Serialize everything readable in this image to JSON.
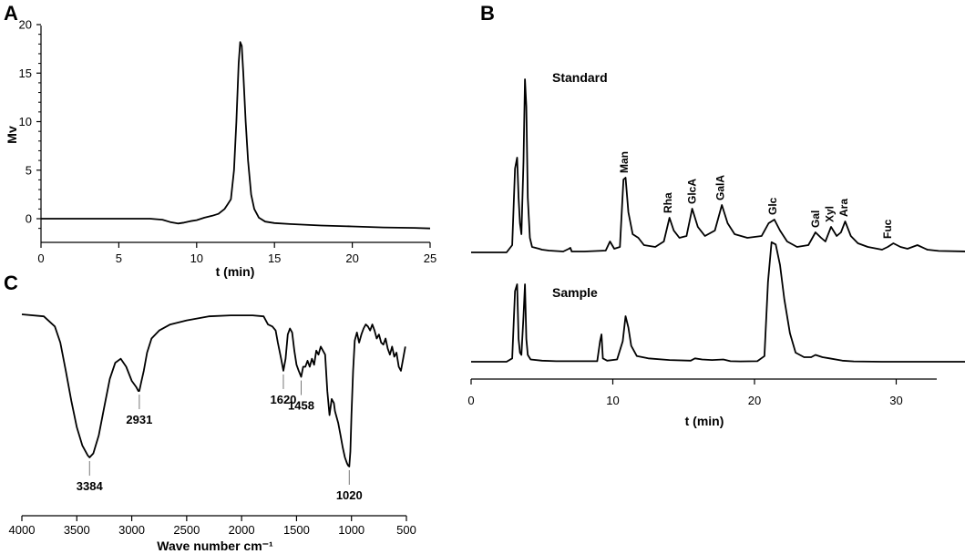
{
  "chart_data": [
    {
      "panel": "A",
      "type": "line",
      "xlabel": "t (min)",
      "ylabel": "Mv",
      "xlim": [
        0,
        25
      ],
      "ylim": [
        -2.3,
        20
      ],
      "xticks": [
        "0",
        "5",
        "10",
        "15",
        "20",
        "25"
      ],
      "yticks": [
        "0",
        "5",
        "10",
        "15",
        "20"
      ],
      "series": [
        {
          "x": [
            0,
            2,
            4,
            6,
            7,
            7.8,
            8.3,
            8.8,
            9.2,
            9.6,
            10,
            10.5,
            11,
            11.4,
            11.8,
            12.0,
            12.2,
            12.4,
            12.55,
            12.7,
            12.8,
            12.9,
            13.0,
            13.15,
            13.3,
            13.5,
            13.7,
            14.0,
            14.4,
            15,
            16,
            18,
            20,
            22,
            24,
            25
          ],
          "y": [
            0,
            0,
            0,
            0,
            0,
            -0.1,
            -0.35,
            -0.5,
            -0.4,
            -0.25,
            -0.15,
            0.1,
            0.3,
            0.5,
            1.0,
            1.5,
            2.0,
            5.0,
            10.0,
            16.0,
            18.2,
            17.8,
            15.0,
            10.0,
            6.0,
            2.5,
            1.0,
            0.1,
            -0.3,
            -0.45,
            -0.55,
            -0.7,
            -0.8,
            -0.9,
            -0.95,
            -1.0
          ]
        }
      ]
    },
    {
      "panel": "B",
      "type": "line",
      "xlabel": "t (min)",
      "xlim": [
        0,
        35
      ],
      "xticks": [
        "0",
        "10",
        "20",
        "30"
      ],
      "series": [
        {
          "name": "Standard",
          "x": [
            0,
            2.5,
            2.9,
            3.1,
            3.25,
            3.35,
            3.45,
            3.55,
            3.7,
            3.8,
            3.9,
            4.0,
            4.15,
            4.3,
            4.8,
            5,
            5.5,
            6.5,
            6.9,
            7.0,
            7.1,
            8,
            9.5,
            9.8,
            10.1,
            10.5,
            10.75,
            10.9,
            11.1,
            11.4,
            11.8,
            12.2,
            13,
            13.6,
            14.0,
            14.3,
            14.7,
            15.2,
            15.6,
            16.0,
            16.5,
            17.2,
            17.7,
            18.1,
            18.6,
            19.5,
            20.5,
            21.0,
            21.4,
            21.8,
            22.3,
            23,
            23.8,
            24.3,
            24.7,
            25.0,
            25.4,
            25.8,
            26.1,
            26.4,
            26.8,
            27.3,
            28.0,
            29.0,
            29.4,
            29.8,
            30.3,
            30.8,
            31.5,
            32.2,
            33,
            35
          ],
          "y": [
            0,
            0,
            4,
            46,
            52,
            30,
            16,
            10,
            50,
            95,
            80,
            30,
            8,
            3,
            2,
            1.5,
            1,
            0.5,
            2,
            2.5,
            0.5,
            0.5,
            1,
            6,
            2,
            3,
            40,
            41,
            22,
            10,
            8,
            4,
            3,
            6,
            19,
            12,
            8,
            9,
            24,
            14,
            9,
            12,
            26,
            16,
            10,
            8,
            9,
            16,
            18,
            12,
            6,
            3,
            4,
            11,
            8,
            6,
            14,
            9,
            11,
            17,
            9,
            5,
            3,
            1.5,
            3,
            5,
            3,
            2,
            4,
            1.5,
            0.8,
            0.5
          ]
        },
        {
          "name": "Sample",
          "x": [
            0,
            2.5,
            2.9,
            3.1,
            3.25,
            3.35,
            3.45,
            3.55,
            3.7,
            3.8,
            3.9,
            4.0,
            4.2,
            5,
            6,
            8.9,
            9.1,
            9.2,
            9.3,
            9.6,
            10.3,
            10.7,
            10.9,
            11.1,
            11.3,
            11.7,
            12.5,
            14,
            15.5,
            15.8,
            16.3,
            17,
            17.8,
            18.3,
            19,
            20.2,
            20.7,
            20.95,
            21.2,
            21.5,
            21.8,
            22.1,
            22.5,
            22.9,
            23.5,
            24.0,
            24.3,
            24.8,
            25.3,
            26.2,
            27,
            29,
            31,
            35
          ],
          "y": [
            0,
            0,
            3,
            62,
            68,
            20,
            8,
            6,
            40,
            68,
            20,
            6,
            2,
            1,
            0.5,
            0.5,
            18,
            24,
            3,
            1,
            2,
            18,
            40,
            30,
            14,
            5,
            3,
            1.5,
            1,
            3,
            2,
            1.5,
            2,
            0.5,
            0.3,
            0.5,
            5,
            70,
            105,
            103,
            85,
            55,
            25,
            8,
            4,
            4,
            6,
            4,
            3,
            1,
            0.3,
            0,
            0,
            0
          ]
        }
      ],
      "annotations": [
        "Man",
        "Rha",
        "GlcA",
        "GalA",
        "Glc",
        "Gal",
        "Xyl",
        "Ara",
        "Fuc"
      ],
      "annotation_x": [
        10.8,
        13.9,
        15.6,
        17.6,
        21.3,
        24.3,
        25.3,
        26.3,
        29.4
      ]
    },
    {
      "panel": "C",
      "type": "line",
      "xlabel": "Wave number cm⁻¹",
      "xlim": [
        4000,
        450
      ],
      "xticks": [
        "4000",
        "3500",
        "3000",
        "2500",
        "2000",
        "1500",
        "1000",
        "500"
      ],
      "band_labels": [
        "3384",
        "2931",
        "1620",
        "1458",
        "1020"
      ],
      "band_x": [
        3384,
        2931,
        1620,
        1458,
        1020
      ],
      "series": [
        {
          "x": [
            4000,
            3800,
            3700,
            3650,
            3600,
            3550,
            3500,
            3450,
            3400,
            3384,
            3350,
            3300,
            3250,
            3200,
            3150,
            3100,
            3050,
            3000,
            2960,
            2940,
            2931,
            2915,
            2890,
            2860,
            2820,
            2750,
            2650,
            2500,
            2300,
            2100,
            1900,
            1800,
            1760,
            1720,
            1690,
            1670,
            1640,
            1620,
            1600,
            1580,
            1560,
            1540,
            1520,
            1500,
            1480,
            1458,
            1440,
            1420,
            1400,
            1380,
            1360,
            1340,
            1320,
            1300,
            1280,
            1260,
            1240,
            1220,
            1200,
            1180,
            1160,
            1150,
            1140,
            1120,
            1100,
            1080,
            1060,
            1040,
            1030,
            1020,
            1010,
            1000,
            985,
            970,
            950,
            930,
            910,
            890,
            870,
            850,
            830,
            810,
            790,
            770,
            750,
            730,
            710,
            690,
            670,
            650,
            630,
            610,
            590,
            570,
            550,
            530,
            510
          ],
          "y": [
            98,
            97,
            92,
            84,
            70,
            55,
            42,
            33,
            28,
            27,
            29,
            38,
            52,
            66,
            74,
            76,
            72,
            65,
            62,
            60,
            60,
            64,
            70,
            79,
            86,
            90,
            93,
            95,
            97,
            97.5,
            97.5,
            97,
            93,
            92,
            90,
            84,
            76,
            70,
            76,
            88,
            91,
            89,
            80,
            73,
            70,
            67,
            72,
            72,
            75,
            72,
            76,
            73,
            80,
            78,
            82,
            80,
            78,
            60,
            48,
            56,
            54,
            50,
            48,
            44,
            38,
            32,
            27,
            24,
            23,
            22.5,
            30,
            48,
            70,
            85,
            89,
            84,
            88,
            91,
            93,
            92,
            90,
            93,
            90,
            86,
            88,
            84,
            83,
            86,
            81,
            78,
            82,
            77,
            79,
            72,
            70,
            76,
            82
          ]
        }
      ]
    }
  ],
  "panels": {
    "a": {
      "letter": "A"
    },
    "b": {
      "letter": "B",
      "trace_labels": [
        "Standard",
        "Sample"
      ]
    },
    "c": {
      "letter": "C"
    }
  }
}
